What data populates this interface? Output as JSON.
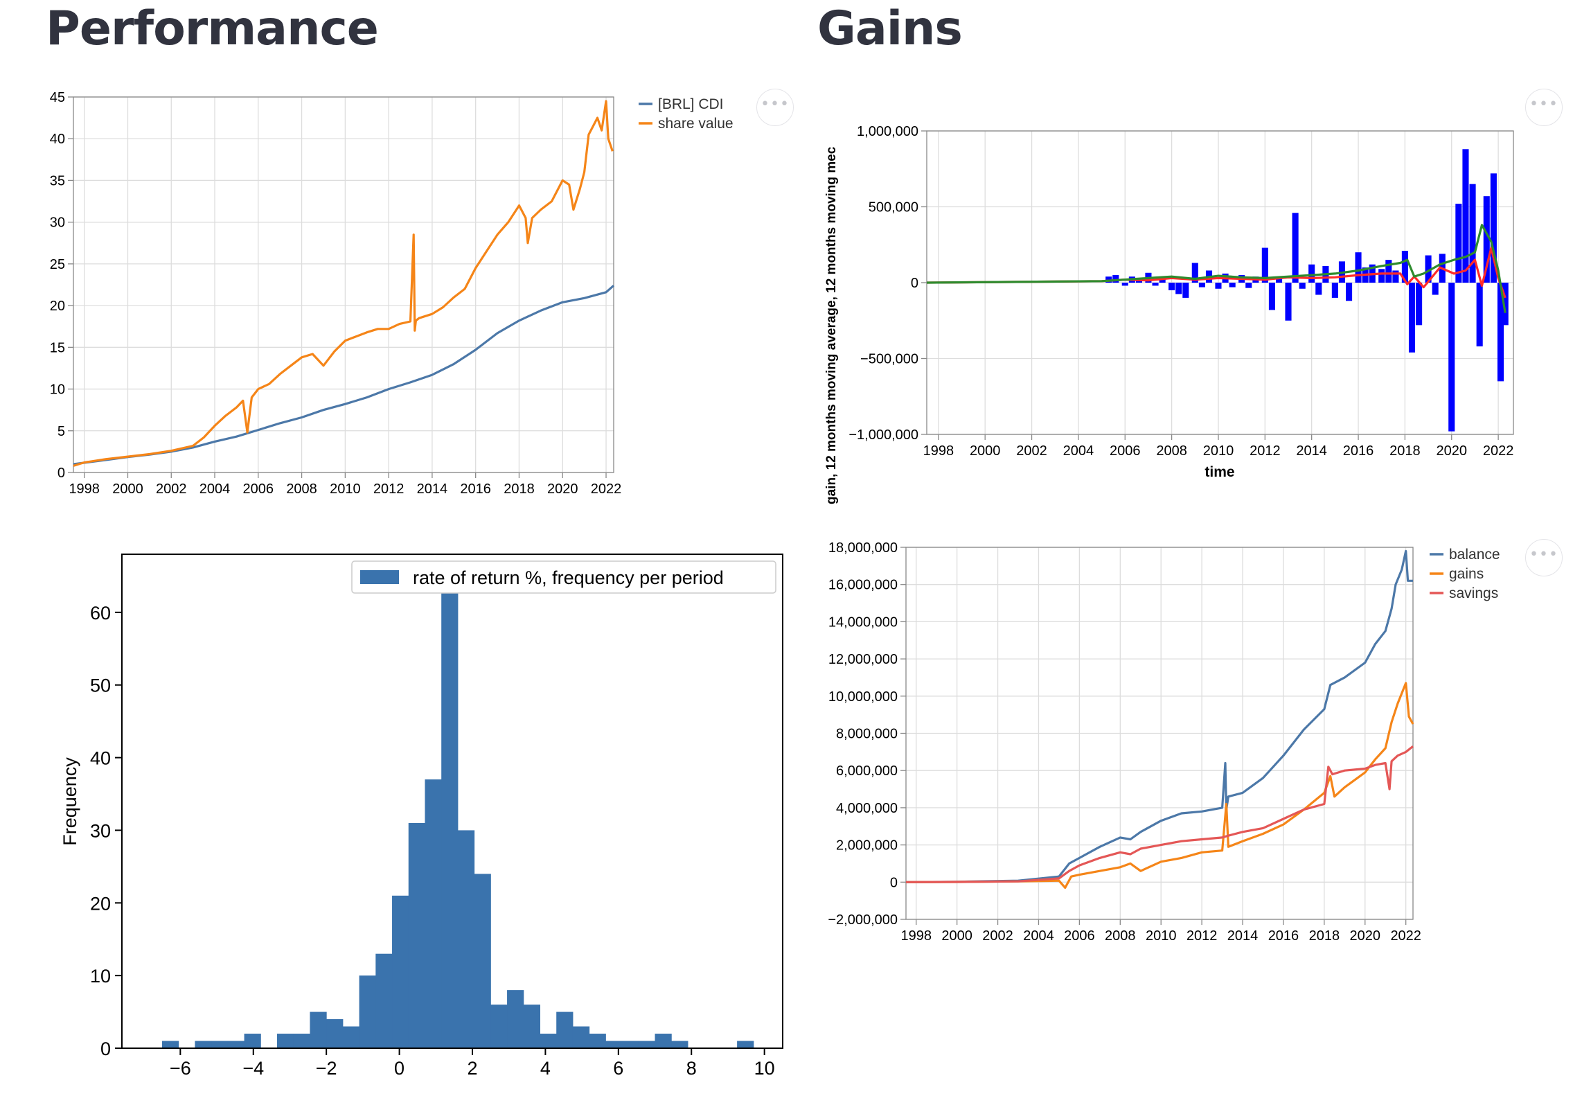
{
  "headings": {
    "performance": "Performance",
    "gains": "Gains"
  },
  "menu_icon": "more-horizontal-icon",
  "colors": {
    "cdi": "#4c78a8",
    "share": "#f58518",
    "blue_bar": "#0000ff",
    "ma_red": "#ff2a2a",
    "ma_green": "#2e8b2e",
    "hist": "#3a73ad",
    "savings": "#e45756"
  },
  "chart_data": [
    {
      "id": "performance",
      "type": "line",
      "title": "",
      "xlabel": "",
      "ylabel": "",
      "xlim": [
        1997.5,
        2022.35
      ],
      "ylim": [
        0,
        45
      ],
      "xticks": [
        "1998",
        "2000",
        "2002",
        "2004",
        "2006",
        "2008",
        "2010",
        "2012",
        "2014",
        "2016",
        "2018",
        "2020",
        "2022"
      ],
      "yticks": [
        "0",
        "5",
        "10",
        "15",
        "20",
        "25",
        "30",
        "35",
        "40",
        "45"
      ],
      "grid": true,
      "legend_position": "top-right-outside",
      "series": [
        {
          "name": "[BRL] CDI",
          "x": [
            1997.5,
            1999,
            2000,
            2001,
            2002,
            2003,
            2004,
            2005,
            2006,
            2007,
            2008,
            2009,
            2010,
            2011,
            2012,
            2013,
            2014,
            2015,
            2016,
            2017,
            2018,
            2019,
            2020,
            2021,
            2022,
            2022.35
          ],
          "y": [
            1.0,
            1.5,
            1.85,
            2.15,
            2.5,
            3.0,
            3.7,
            4.3,
            5.1,
            5.9,
            6.6,
            7.5,
            8.2,
            9.0,
            10.0,
            10.8,
            11.7,
            13.0,
            14.7,
            16.7,
            18.2,
            19.4,
            20.4,
            20.9,
            21.6,
            22.4
          ]
        },
        {
          "name": "share value",
          "x": [
            1997.5,
            1998,
            1999,
            2000,
            2001,
            2002,
            2003,
            2003.5,
            2004,
            2004.5,
            2005,
            2005.3,
            2005.5,
            2005.7,
            2006,
            2006.5,
            2007,
            2007.5,
            2008,
            2008.5,
            2009,
            2009.5,
            2010,
            2010.5,
            2011,
            2011.5,
            2012,
            2012.5,
            2013,
            2013.15,
            2013.2,
            2013.25,
            2013.4,
            2014,
            2014.5,
            2015,
            2015.5,
            2016,
            2016.5,
            2017,
            2017.5,
            2018,
            2018.3,
            2018.4,
            2018.6,
            2019,
            2019.5,
            2020,
            2020.3,
            2020.5,
            2020.8,
            2021,
            2021.2,
            2021.4,
            2021.6,
            2021.8,
            2022,
            2022.1,
            2022.3
          ],
          "y": [
            0.8,
            1.2,
            1.6,
            1.9,
            2.2,
            2.6,
            3.2,
            4.2,
            5.6,
            6.8,
            7.8,
            8.6,
            4.8,
            9.0,
            10.0,
            10.6,
            11.8,
            12.8,
            13.8,
            14.2,
            12.8,
            14.5,
            15.8,
            16.3,
            16.8,
            17.2,
            17.2,
            17.8,
            18.1,
            28.5,
            17.0,
            18.2,
            18.5,
            19.0,
            19.8,
            21.0,
            22.0,
            24.5,
            26.5,
            28.5,
            30.0,
            32.0,
            30.5,
            27.5,
            30.5,
            31.5,
            32.5,
            35.0,
            34.5,
            31.5,
            34.0,
            36.0,
            40.5,
            41.5,
            42.5,
            41.0,
            44.5,
            40.0,
            38.5
          ]
        }
      ]
    },
    {
      "id": "gains-moving-average",
      "type": "bar",
      "title": "",
      "xlabel": "time",
      "ylabel": "gain, 12 months moving average, 12 months moving mec",
      "xlim": [
        1997.5,
        2022.65
      ],
      "ylim": [
        -1000000,
        1000000
      ],
      "xticks": [
        "1998",
        "2000",
        "2002",
        "2004",
        "2006",
        "2008",
        "2010",
        "2012",
        "2014",
        "2016",
        "2018",
        "2020",
        "2022"
      ],
      "yticks": [
        "−1,000,000",
        "−500,000",
        "0",
        "500,000",
        "1,000,000"
      ],
      "grid": true,
      "bar_x": [
        2005.3,
        2005.6,
        2006.0,
        2006.3,
        2006.6,
        2007.0,
        2007.3,
        2007.6,
        2008.0,
        2008.3,
        2008.6,
        2009.0,
        2009.3,
        2009.6,
        2010.0,
        2010.3,
        2010.6,
        2011.0,
        2011.3,
        2011.6,
        2012.0,
        2012.3,
        2012.6,
        2013.0,
        2013.3,
        2013.6,
        2014.0,
        2014.3,
        2014.6,
        2015.0,
        2015.3,
        2015.6,
        2016.0,
        2016.3,
        2016.6,
        2017.0,
        2017.3,
        2017.6,
        2018.0,
        2018.3,
        2018.6,
        2019.0,
        2019.3,
        2019.6,
        2020.0,
        2020.3,
        2020.6,
        2020.9,
        2021.2,
        2021.5,
        2021.8,
        2022.1,
        2022.3
      ],
      "bar_y": [
        40000,
        50000,
        -20000,
        40000,
        25000,
        65000,
        -20000,
        40000,
        -50000,
        -75000,
        -100000,
        130000,
        -30000,
        80000,
        -40000,
        60000,
        -30000,
        50000,
        -35000,
        40000,
        230000,
        -180000,
        40000,
        -250000,
        460000,
        -40000,
        120000,
        -80000,
        110000,
        -100000,
        140000,
        -120000,
        200000,
        100000,
        120000,
        90000,
        150000,
        80000,
        210000,
        -460000,
        -280000,
        180000,
        -80000,
        190000,
        -980000,
        520000,
        880000,
        650000,
        -420000,
        570000,
        720000,
        -650000,
        -280000
      ],
      "series": [
        {
          "name": "",
          "x": [
            1997.5,
            2005,
            2006,
            2007,
            2008,
            2009,
            2010,
            2011,
            2012,
            2013,
            2014,
            2015,
            2016,
            2017,
            2017.8,
            2018.1,
            2018.4,
            2018.8,
            2019.5,
            2020.1,
            2020.6,
            2021.0,
            2021.3,
            2021.7,
            2022.0,
            2022.3
          ],
          "y": [
            0,
            10000,
            20000,
            15000,
            30000,
            20000,
            30000,
            25000,
            20000,
            35000,
            30000,
            35000,
            50000,
            60000,
            60000,
            -10000,
            40000,
            -30000,
            100000,
            60000,
            80000,
            150000,
            -20000,
            230000,
            30000,
            -100000
          ]
        },
        {
          "name": "",
          "x": [
            1997.5,
            2005,
            2006,
            2007,
            2008,
            2009,
            2010,
            2011,
            2012,
            2013,
            2014,
            2015,
            2016,
            2017,
            2017.8,
            2018.1,
            2018.4,
            2018.8,
            2019.5,
            2020.1,
            2020.6,
            2021.0,
            2021.3,
            2021.7,
            2022.0,
            2022.3
          ],
          "y": [
            0,
            10000,
            20000,
            30000,
            40000,
            25000,
            45000,
            35000,
            30000,
            40000,
            50000,
            60000,
            80000,
            110000,
            130000,
            150000,
            40000,
            60000,
            120000,
            150000,
            170000,
            200000,
            380000,
            270000,
            80000,
            -200000
          ]
        }
      ]
    },
    {
      "id": "return-histogram",
      "type": "bar",
      "title": "",
      "xlabel": "",
      "ylabel": "Frequency",
      "xlim": [
        -7.6,
        10.5
      ],
      "ylim": [
        0,
        68
      ],
      "xticks": [
        "−6",
        "−4",
        "−2",
        "0",
        "2",
        "4",
        "6",
        "8",
        "10"
      ],
      "yticks": [
        "0",
        "10",
        "20",
        "30",
        "40",
        "50",
        "60"
      ],
      "grid": false,
      "legend_position": "top-right",
      "bin_width": 0.45,
      "bins_start": [
        -6.5,
        -5.6,
        -5.15,
        -4.7,
        -4.25,
        -3.8,
        -3.35,
        -2.9,
        -2.45,
        -2.0,
        -1.55,
        -1.1,
        -0.65,
        -0.2,
        0.25,
        0.7,
        1.15,
        1.6,
        2.05,
        2.5,
        2.95,
        3.4,
        3.85,
        4.3,
        4.75,
        5.2,
        5.65,
        6.1,
        6.55,
        7.0,
        7.45,
        9.25
      ],
      "values": [
        1,
        1,
        1,
        1,
        2,
        0,
        2,
        2,
        5,
        4,
        3,
        10,
        13,
        21,
        31,
        37,
        65,
        30,
        24,
        6,
        8,
        6,
        2,
        5,
        3,
        2,
        1,
        1,
        1,
        2,
        1,
        1
      ],
      "series": [
        {
          "name": "rate of return %, frequency per period"
        }
      ]
    },
    {
      "id": "balance-gains-savings",
      "type": "line",
      "title": "",
      "xlabel": "",
      "ylabel": "",
      "xlim": [
        1997.5,
        2022.35
      ],
      "ylim": [
        -2000000,
        18000000
      ],
      "xticks": [
        "1998",
        "2000",
        "2002",
        "2004",
        "2006",
        "2008",
        "2010",
        "2012",
        "2014",
        "2016",
        "2018",
        "2020",
        "2022"
      ],
      "yticks": [
        "−2,000,000",
        "0",
        "2,000,000",
        "4,000,000",
        "6,000,000",
        "8,000,000",
        "10,000,000",
        "12,000,000",
        "14,000,000",
        "16,000,000",
        "18,000,000"
      ],
      "grid": true,
      "legend_position": "top-right-outside",
      "series": [
        {
          "name": "balance",
          "x": [
            1997.5,
            2000,
            2003,
            2005,
            2005.5,
            2006,
            2007,
            2008,
            2008.5,
            2009,
            2010,
            2011,
            2012,
            2013,
            2013.15,
            2013.2,
            2013.3,
            2014,
            2015,
            2016,
            2017,
            2018,
            2018.3,
            2019,
            2020,
            2020.5,
            2021,
            2021.3,
            2021.5,
            2021.8,
            2022,
            2022.1,
            2022.35
          ],
          "y": [
            0,
            20000,
            80000,
            300000,
            1000000,
            1300000,
            1900000,
            2400000,
            2300000,
            2700000,
            3300000,
            3700000,
            3800000,
            4000000,
            6400000,
            3900000,
            4600000,
            4800000,
            5600000,
            6800000,
            8200000,
            9300000,
            10600000,
            11000000,
            11800000,
            12800000,
            13500000,
            14700000,
            16000000,
            16800000,
            17800000,
            16200000,
            16200000
          ]
        },
        {
          "name": "gains",
          "x": [
            1997.5,
            2000,
            2003,
            2005,
            2005.3,
            2005.6,
            2006,
            2007,
            2008,
            2008.5,
            2009,
            2010,
            2011,
            2012,
            2013,
            2013.2,
            2013.3,
            2014,
            2015,
            2016,
            2017,
            2018,
            2018.3,
            2018.5,
            2019,
            2020,
            2020.5,
            2021,
            2021.3,
            2021.6,
            2022,
            2022.15,
            2022.35
          ],
          "y": [
            0,
            10000,
            40000,
            80000,
            -300000,
            300000,
            400000,
            600000,
            800000,
            1000000,
            600000,
            1100000,
            1300000,
            1600000,
            1700000,
            4200000,
            1900000,
            2200000,
            2600000,
            3100000,
            3900000,
            4800000,
            5700000,
            4600000,
            5100000,
            5900000,
            6600000,
            7200000,
            8600000,
            9600000,
            10700000,
            8900000,
            8500000
          ]
        },
        {
          "name": "savings",
          "x": [
            1997.5,
            2000,
            2003,
            2005,
            2005.5,
            2006,
            2007,
            2008,
            2008.5,
            2009,
            2010,
            2011,
            2012,
            2013,
            2013.3,
            2014,
            2015,
            2016,
            2017,
            2018,
            2018.2,
            2018.4,
            2019,
            2020,
            2020.5,
            2021,
            2021.2,
            2021.3,
            2021.6,
            2022,
            2022.35
          ],
          "y": [
            0,
            10000,
            40000,
            200000,
            600000,
            900000,
            1300000,
            1600000,
            1500000,
            1800000,
            2000000,
            2200000,
            2300000,
            2400000,
            2500000,
            2700000,
            2900000,
            3400000,
            3900000,
            4200000,
            6200000,
            5800000,
            6000000,
            6100000,
            6300000,
            6400000,
            5000000,
            6500000,
            6800000,
            7000000,
            7300000
          ]
        }
      ]
    }
  ]
}
